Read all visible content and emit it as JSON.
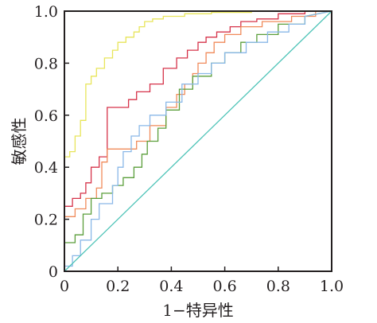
{
  "chart_data": {
    "type": "line",
    "title": "",
    "xlabel": "1−特异性",
    "ylabel": "敏感性",
    "xlim": [
      0,
      1.0
    ],
    "ylim": [
      0,
      1.0
    ],
    "xticks": [
      "0",
      "0.2",
      "0.4",
      "0.6",
      "0.8",
      "1.0"
    ],
    "yticks": [
      "0",
      "0.2",
      "0.4",
      "0.6",
      "0.8",
      "1.0"
    ],
    "grid": false,
    "legend": "none",
    "series": [
      {
        "color": "#e8e55a",
        "step": true,
        "x": [
          0.0,
          0.0,
          0.02,
          0.02,
          0.04,
          0.04,
          0.06,
          0.06,
          0.08,
          0.08,
          0.1,
          0.1,
          0.12,
          0.12,
          0.15,
          0.15,
          0.18,
          0.18,
          0.2,
          0.2,
          0.23,
          0.23,
          0.26,
          0.26,
          0.28,
          0.28,
          0.3,
          0.3,
          0.33,
          0.33,
          0.37,
          0.37,
          0.45,
          0.45,
          0.55,
          0.55,
          0.7,
          0.7,
          0.85,
          0.85,
          1.0
        ],
        "y": [
          0.0,
          0.44,
          0.44,
          0.46,
          0.46,
          0.52,
          0.52,
          0.58,
          0.58,
          0.72,
          0.72,
          0.75,
          0.75,
          0.78,
          0.78,
          0.82,
          0.82,
          0.85,
          0.85,
          0.88,
          0.88,
          0.9,
          0.9,
          0.92,
          0.92,
          0.94,
          0.94,
          0.96,
          0.96,
          0.97,
          0.97,
          0.98,
          0.98,
          0.99,
          0.99,
          0.995,
          0.995,
          1.0,
          1.0,
          1.0,
          1.0
        ]
      },
      {
        "color": "#d6334a",
        "step": true,
        "x": [
          0.0,
          0.0,
          0.03,
          0.03,
          0.06,
          0.06,
          0.08,
          0.08,
          0.1,
          0.1,
          0.13,
          0.13,
          0.16,
          0.16,
          0.24,
          0.24,
          0.27,
          0.27,
          0.32,
          0.32,
          0.37,
          0.37,
          0.42,
          0.42,
          0.46,
          0.46,
          0.5,
          0.5,
          0.53,
          0.53,
          0.57,
          0.57,
          0.62,
          0.62,
          0.66,
          0.66,
          0.72,
          0.72,
          0.8,
          0.8,
          0.9,
          0.9,
          1.0
        ],
        "y": [
          0.0,
          0.25,
          0.25,
          0.28,
          0.28,
          0.3,
          0.3,
          0.34,
          0.34,
          0.4,
          0.4,
          0.44,
          0.44,
          0.63,
          0.63,
          0.66,
          0.66,
          0.69,
          0.69,
          0.72,
          0.72,
          0.78,
          0.78,
          0.82,
          0.82,
          0.85,
          0.85,
          0.88,
          0.88,
          0.9,
          0.9,
          0.92,
          0.92,
          0.94,
          0.94,
          0.96,
          0.96,
          0.97,
          0.97,
          0.99,
          0.99,
          1.0,
          1.0
        ]
      },
      {
        "color": "#f08a5a",
        "step": true,
        "x": [
          0.0,
          0.0,
          0.04,
          0.04,
          0.08,
          0.08,
          0.12,
          0.12,
          0.14,
          0.14,
          0.16,
          0.16,
          0.27,
          0.27,
          0.32,
          0.32,
          0.38,
          0.38,
          0.42,
          0.42,
          0.45,
          0.45,
          0.48,
          0.48,
          0.5,
          0.5,
          0.53,
          0.53,
          0.56,
          0.56,
          0.6,
          0.6,
          0.66,
          0.66,
          0.74,
          0.74,
          0.85,
          0.85,
          0.94,
          0.94,
          1.0
        ],
        "y": [
          0.0,
          0.21,
          0.21,
          0.24,
          0.24,
          0.28,
          0.28,
          0.32,
          0.32,
          0.42,
          0.42,
          0.47,
          0.47,
          0.5,
          0.5,
          0.56,
          0.56,
          0.63,
          0.63,
          0.68,
          0.68,
          0.72,
          0.72,
          0.76,
          0.76,
          0.8,
          0.8,
          0.84,
          0.84,
          0.88,
          0.88,
          0.91,
          0.91,
          0.94,
          0.94,
          0.96,
          0.96,
          0.98,
          0.98,
          1.0,
          1.0
        ]
      },
      {
        "color": "#5a9e3a",
        "step": true,
        "x": [
          0.0,
          0.0,
          0.04,
          0.04,
          0.07,
          0.07,
          0.1,
          0.1,
          0.14,
          0.14,
          0.18,
          0.18,
          0.22,
          0.22,
          0.26,
          0.26,
          0.29,
          0.29,
          0.31,
          0.31,
          0.35,
          0.35,
          0.38,
          0.38,
          0.43,
          0.43,
          0.48,
          0.48,
          0.55,
          0.55,
          0.6,
          0.6,
          0.66,
          0.66,
          0.72,
          0.72,
          0.8,
          0.8,
          0.9,
          0.9,
          1.0
        ],
        "y": [
          0.0,
          0.11,
          0.11,
          0.14,
          0.14,
          0.22,
          0.22,
          0.28,
          0.28,
          0.3,
          0.3,
          0.33,
          0.33,
          0.36,
          0.36,
          0.4,
          0.4,
          0.45,
          0.45,
          0.5,
          0.5,
          0.55,
          0.55,
          0.62,
          0.62,
          0.7,
          0.7,
          0.75,
          0.75,
          0.8,
          0.8,
          0.84,
          0.84,
          0.88,
          0.88,
          0.91,
          0.91,
          0.95,
          0.95,
          0.98,
          1.0
        ]
      },
      {
        "color": "#8ab8e8",
        "step": true,
        "x": [
          0.0,
          0.0,
          0.03,
          0.03,
          0.06,
          0.06,
          0.1,
          0.1,
          0.13,
          0.13,
          0.18,
          0.18,
          0.2,
          0.2,
          0.22,
          0.22,
          0.25,
          0.25,
          0.28,
          0.28,
          0.32,
          0.32,
          0.38,
          0.38,
          0.44,
          0.44,
          0.5,
          0.5,
          0.55,
          0.55,
          0.6,
          0.6,
          0.68,
          0.68,
          0.76,
          0.76,
          0.84,
          0.84,
          0.9,
          0.9,
          1.0
        ],
        "y": [
          0.0,
          0.02,
          0.02,
          0.06,
          0.06,
          0.12,
          0.12,
          0.2,
          0.2,
          0.26,
          0.26,
          0.33,
          0.33,
          0.4,
          0.4,
          0.46,
          0.46,
          0.52,
          0.52,
          0.56,
          0.56,
          0.6,
          0.6,
          0.65,
          0.65,
          0.72,
          0.72,
          0.76,
          0.76,
          0.8,
          0.8,
          0.84,
          0.84,
          0.88,
          0.88,
          0.92,
          0.92,
          0.95,
          0.95,
          0.98,
          1.0
        ]
      },
      {
        "color": "#4fc4b8",
        "step": false,
        "x": [
          0.0,
          1.0
        ],
        "y": [
          0.0,
          1.0
        ]
      }
    ]
  }
}
